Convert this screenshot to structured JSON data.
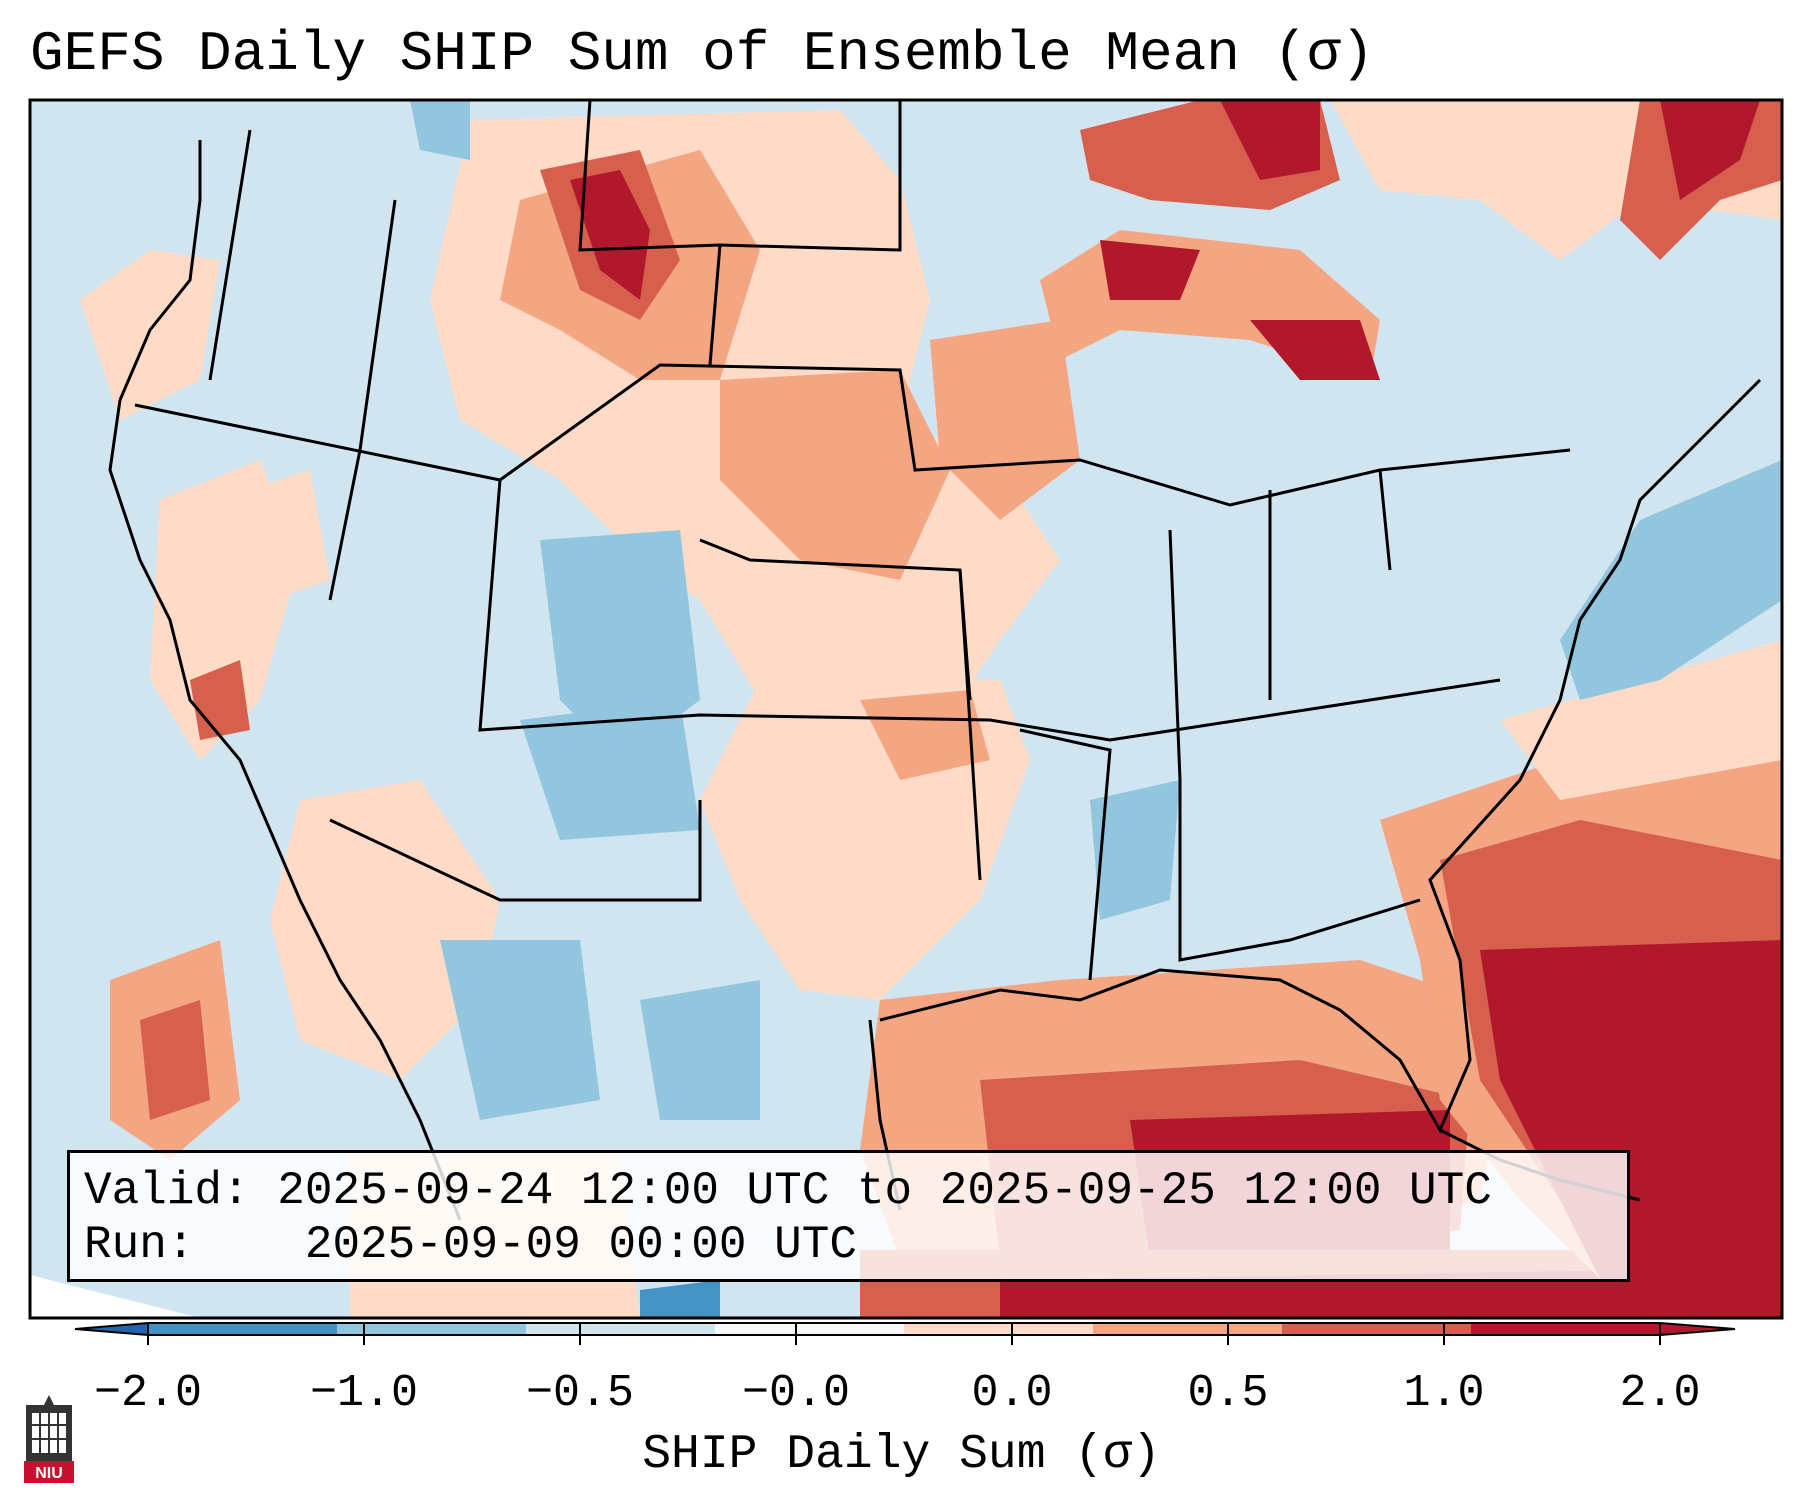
{
  "title": "GEFS Daily SHIP Sum of Ensemble Mean (σ)",
  "info": {
    "valid_label": "Valid:",
    "valid_value": "2025-09-24 12:00 UTC to 2025-09-25 12:00 UTC",
    "run_label": "Run:",
    "run_value": "2025-09-09 00:00 UTC"
  },
  "colorbar": {
    "title": "SHIP Daily Sum (σ)",
    "ticks": [
      "−2.0",
      "−1.0",
      "−0.5",
      "−0.0",
      "0.0",
      "0.5",
      "1.0",
      "2.0"
    ],
    "colors": [
      "#4393c3",
      "#92c5de",
      "#d1e5f0",
      "#f7f7f7",
      "#fddbc7",
      "#f4a582",
      "#d6604d",
      "#b2182b"
    ],
    "extend_low_color": "#2166ac",
    "extend_high_color": "#b2182b"
  },
  "map_colors": {
    "background": "#d1e5f0",
    "land_outside": "#ffffff",
    "border": "#000000"
  },
  "logo": {
    "text": "NIU",
    "icon": "university-tower-icon"
  }
}
